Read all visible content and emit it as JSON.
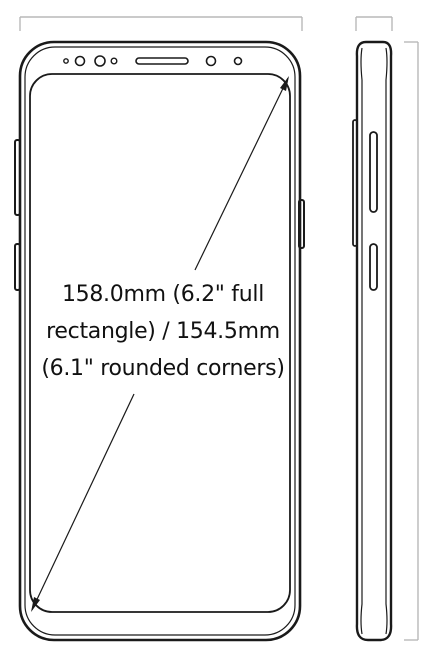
{
  "diagonal_label": {
    "line1": "158.0mm (6.2\" full",
    "line2": "rectangle) / 154.5mm",
    "line3": "(6.1\" rounded corners)"
  },
  "colors": {
    "outline": "#1a1a1a",
    "dimension": "#b8b8b8",
    "background": "#ffffff"
  }
}
